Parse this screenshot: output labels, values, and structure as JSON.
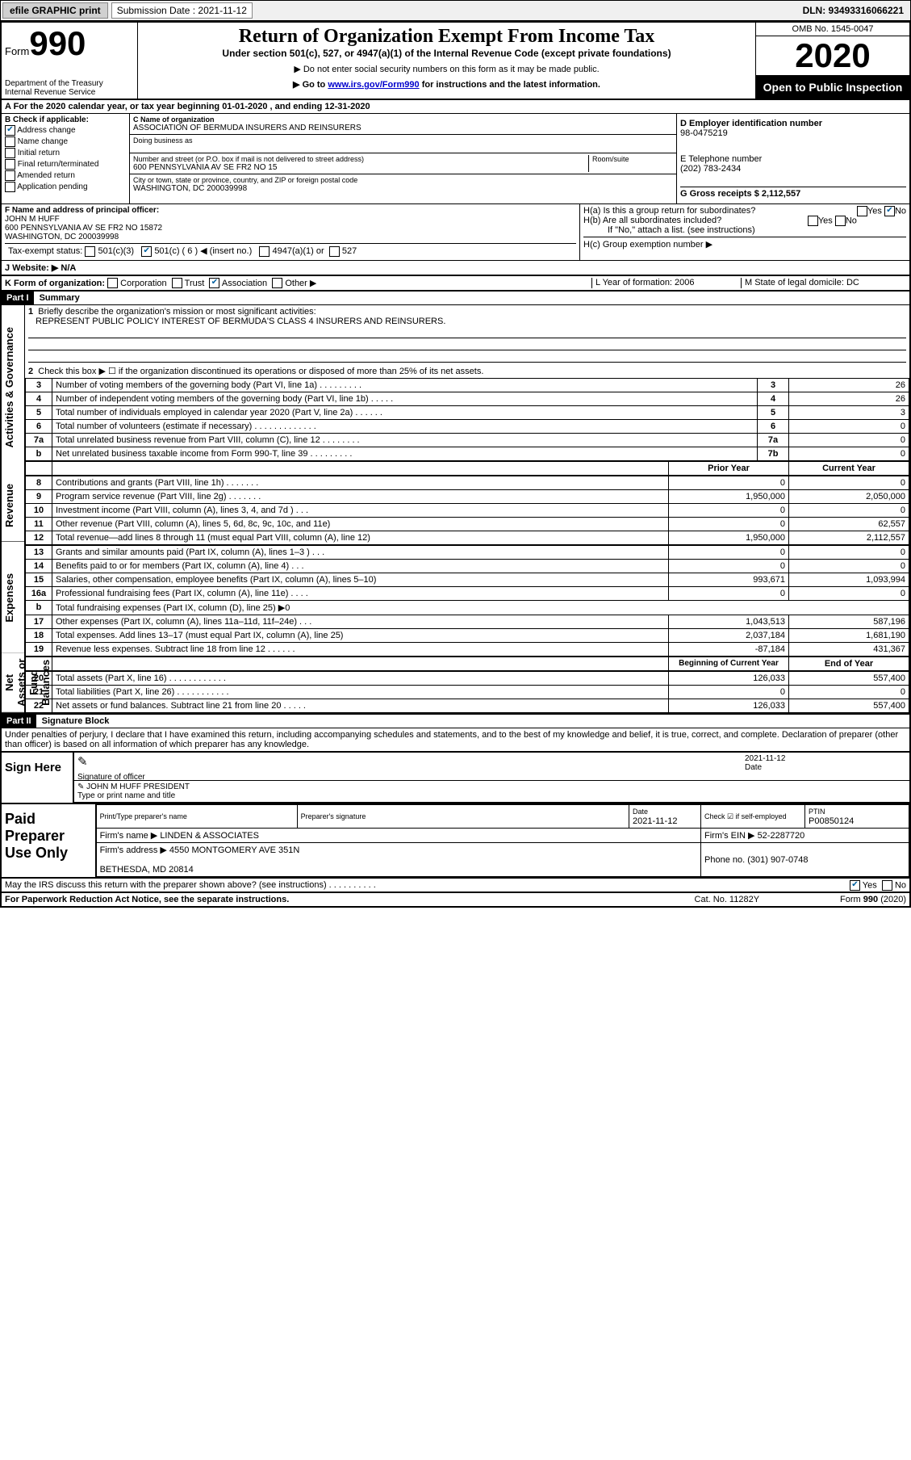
{
  "topbar": {
    "efile": "efile GRAPHIC print",
    "submission_label": "Submission Date : 2021-11-12",
    "dln": "DLN: 93493316066221"
  },
  "header": {
    "form_word": "Form",
    "form_no": "990",
    "title": "Return of Organization Exempt From Income Tax",
    "subtitle": "Under section 501(c), 527, or 4947(a)(1) of the Internal Revenue Code (except private foundations)",
    "note1": "▶ Do not enter social security numbers on this form as it may be made public.",
    "note2_pre": "▶ Go to ",
    "note2_link": "www.irs.gov/Form990",
    "note2_post": " for instructions and the latest information.",
    "dept": "Department of the Treasury\nInternal Revenue Service",
    "omb": "OMB No. 1545-0047",
    "year": "2020",
    "open": "Open to Public Inspection"
  },
  "row_a": "A For the 2020 calendar year, or tax year beginning 01-01-2020   , and ending 12-31-2020",
  "section_b": {
    "label": "B Check if applicable:",
    "items": [
      {
        "text": "Address change",
        "checked": true
      },
      {
        "text": "Name change",
        "checked": false
      },
      {
        "text": "Initial return",
        "checked": false
      },
      {
        "text": "Final return/terminated",
        "checked": false
      },
      {
        "text": "Amended return",
        "checked": false
      },
      {
        "text": "Application pending",
        "checked": false
      }
    ]
  },
  "section_c": {
    "name_label": "C Name of organization",
    "name": "ASSOCIATION OF BERMUDA INSURERS AND REINSURERS",
    "dba_label": "Doing business as",
    "dba": "",
    "addr_label": "Number and street (or P.O. box if mail is not delivered to street address)",
    "room_label": "Room/suite",
    "addr": "600 PENNSYLVANIA AV SE FR2 NO 15",
    "city_label": "City or town, state or province, country, and ZIP or foreign postal code",
    "city": "WASHINGTON, DC  200039998"
  },
  "section_d": {
    "label": "D Employer identification number",
    "ein": "98-0475219",
    "phone_label": "E Telephone number",
    "phone": "(202) 783-2434",
    "gross_label": "G Gross receipts $ 2,112,557"
  },
  "section_f": {
    "label": "F  Name and address of principal officer:",
    "name": "JOHN M HUFF",
    "addr": "600 PENNSYLVANIA AV SE FR2 NO 15872\nWASHINGTON, DC  200039998"
  },
  "section_h": {
    "ha": "H(a)  Is this a group return for subordinates?",
    "ha_yes": "Yes",
    "ha_no": "No",
    "ha_checked": "no",
    "hb": "H(b)  Are all subordinates included?",
    "hb_yes": "Yes",
    "hb_no": "No",
    "hb_note": "If \"No,\" attach a list. (see instructions)",
    "hc": "H(c)  Group exemption number ▶"
  },
  "tax_status": {
    "label": "Tax-exempt status:",
    "c3": "501(c)(3)",
    "c": "501(c) ( 6 ) ◀ (insert no.)",
    "c_checked": true,
    "a4947": "4947(a)(1) or",
    "s527": "527"
  },
  "row_j": "J   Website: ▶  N/A",
  "row_k": {
    "label": "K Form of organization:",
    "corp": "Corporation",
    "trust": "Trust",
    "assoc": "Association",
    "assoc_checked": true,
    "other": "Other ▶",
    "l": "L Year of formation: 2006",
    "m": "M State of legal domicile: DC"
  },
  "part1": {
    "hdr": "Part I",
    "title": "Summary",
    "q1_label": "1",
    "q1_text": "Briefly describe the organization's mission or most significant activities:",
    "q1_answer": "REPRESENT PUBLIC POLICY INTEREST OF BERMUDA'S CLASS 4 INSURERS AND REINSURERS.",
    "q2_label": "2",
    "q2_text": "Check this box ▶ ☐  if the organization discontinued its operations or disposed of more than 25% of its net assets.",
    "side_gov": "Activities & Governance",
    "side_rev": "Revenue",
    "side_exp": "Expenses",
    "side_net": "Net Assets or Fund Balances",
    "lines_gov": [
      {
        "n": "3",
        "t": "Number of voting members of the governing body (Part VI, line 1a)   .   .   .   .   .   .   .   .   .",
        "b": "3",
        "v": "26"
      },
      {
        "n": "4",
        "t": "Number of independent voting members of the governing body (Part VI, line 1b)   .   .   .   .   .",
        "b": "4",
        "v": "26"
      },
      {
        "n": "5",
        "t": "Total number of individuals employed in calendar year 2020 (Part V, line 2a)   .   .   .   .   .   .",
        "b": "5",
        "v": "3"
      },
      {
        "n": "6",
        "t": "Total number of volunteers (estimate if necessary)   .   .   .   .   .   .   .   .   .   .   .   .   .",
        "b": "6",
        "v": "0"
      },
      {
        "n": "7a",
        "t": "Total unrelated business revenue from Part VIII, column (C), line 12   .   .   .   .   .   .   .   .",
        "b": "7a",
        "v": "0"
      },
      {
        "n": "b",
        "t": "Net unrelated business taxable income from Form 990-T, line 39   .   .   .   .   .   .   .   .   .",
        "b": "7b",
        "v": "0"
      }
    ],
    "col_prior": "Prior Year",
    "col_current": "Current Year",
    "lines_rev": [
      {
        "n": "8",
        "t": "Contributions and grants (Part VIII, line 1h)   .   .   .   .   .   .   .",
        "p": "0",
        "c": "0"
      },
      {
        "n": "9",
        "t": "Program service revenue (Part VIII, line 2g)   .   .   .   .   .   .   .",
        "p": "1,950,000",
        "c": "2,050,000"
      },
      {
        "n": "10",
        "t": "Investment income (Part VIII, column (A), lines 3, 4, and 7d )   .   .   .",
        "p": "0",
        "c": "0"
      },
      {
        "n": "11",
        "t": "Other revenue (Part VIII, column (A), lines 5, 6d, 8c, 9c, 10c, and 11e)",
        "p": "0",
        "c": "62,557"
      },
      {
        "n": "12",
        "t": "Total revenue—add lines 8 through 11 (must equal Part VIII, column (A), line 12)",
        "p": "1,950,000",
        "c": "2,112,557"
      }
    ],
    "lines_exp": [
      {
        "n": "13",
        "t": "Grants and similar amounts paid (Part IX, column (A), lines 1–3 )   .   .   .",
        "p": "0",
        "c": "0"
      },
      {
        "n": "14",
        "t": "Benefits paid to or for members (Part IX, column (A), line 4)   .   .   .",
        "p": "0",
        "c": "0"
      },
      {
        "n": "15",
        "t": "Salaries, other compensation, employee benefits (Part IX, column (A), lines 5–10)",
        "p": "993,671",
        "c": "1,093,994"
      },
      {
        "n": "16a",
        "t": "Professional fundraising fees (Part IX, column (A), line 11e)   .   .   .   .",
        "p": "0",
        "c": "0"
      },
      {
        "n": "b",
        "t": "Total fundraising expenses (Part IX, column (D), line 25) ▶0",
        "p": "",
        "c": "",
        "single": true
      },
      {
        "n": "17",
        "t": "Other expenses (Part IX, column (A), lines 11a–11d, 11f–24e)   .   .   .",
        "p": "1,043,513",
        "c": "587,196"
      },
      {
        "n": "18",
        "t": "Total expenses. Add lines 13–17 (must equal Part IX, column (A), line 25)",
        "p": "2,037,184",
        "c": "1,681,190"
      },
      {
        "n": "19",
        "t": "Revenue less expenses. Subtract line 18 from line 12  .   .   .   .   .   .",
        "p": "-87,184",
        "c": "431,367"
      }
    ],
    "col_begin": "Beginning of Current Year",
    "col_end": "End of Year",
    "lines_net": [
      {
        "n": "20",
        "t": "Total assets (Part X, line 16)   .   .   .   .   .   .   .   .   .   .   .   .",
        "p": "126,033",
        "c": "557,400"
      },
      {
        "n": "21",
        "t": "Total liabilities (Part X, line 26)   .   .   .   .   .   .   .   .   .   .   .",
        "p": "0",
        "c": "0"
      },
      {
        "n": "22",
        "t": "Net assets or fund balances. Subtract line 21 from line 20  .   .   .   .   .",
        "p": "126,033",
        "c": "557,400"
      }
    ]
  },
  "part2": {
    "hdr": "Part II",
    "title": "Signature Block",
    "penalty": "Under penalties of perjury, I declare that I have examined this return, including accompanying schedules and statements, and to the best of my knowledge and belief, it is true, correct, and complete. Declaration of preparer (other than officer) is based on all information of which preparer has any knowledge."
  },
  "sign": {
    "label": "Sign Here",
    "sig_of_officer": "Signature of officer",
    "date_label": "Date",
    "date": "2021-11-12",
    "name": "JOHN M HUFF PRESIDENT",
    "name_label": "Type or print name and title"
  },
  "prep": {
    "label": "Paid Preparer Use Only",
    "col1": "Print/Type preparer's name",
    "col2": "Preparer's signature",
    "col3": "Date",
    "date": "2021-11-12",
    "col4": "Check ☑ if self-employed",
    "col5_label": "PTIN",
    "ptin": "P00850124",
    "firm_label": "Firm's name    ▶",
    "firm": "LINDEN & ASSOCIATES",
    "firm_ein_label": "Firm's EIN ▶",
    "firm_ein": "52-2287720",
    "addr_label": "Firm's address ▶",
    "addr": "4550 MONTGOMERY AVE 351N\n\nBETHESDA, MD  20814",
    "phone_label": "Phone no.",
    "phone": "(301) 907-0748"
  },
  "discuss": {
    "text": "May the IRS discuss this return with the preparer shown above? (see instructions)   .    .    .    .    .    .    .    .    .    .",
    "yes": "Yes",
    "no": "No",
    "checked": "yes"
  },
  "footer": {
    "left": "For Paperwork Reduction Act Notice, see the separate instructions.",
    "mid": "Cat. No. 11282Y",
    "right": "Form 990 (2020)"
  }
}
